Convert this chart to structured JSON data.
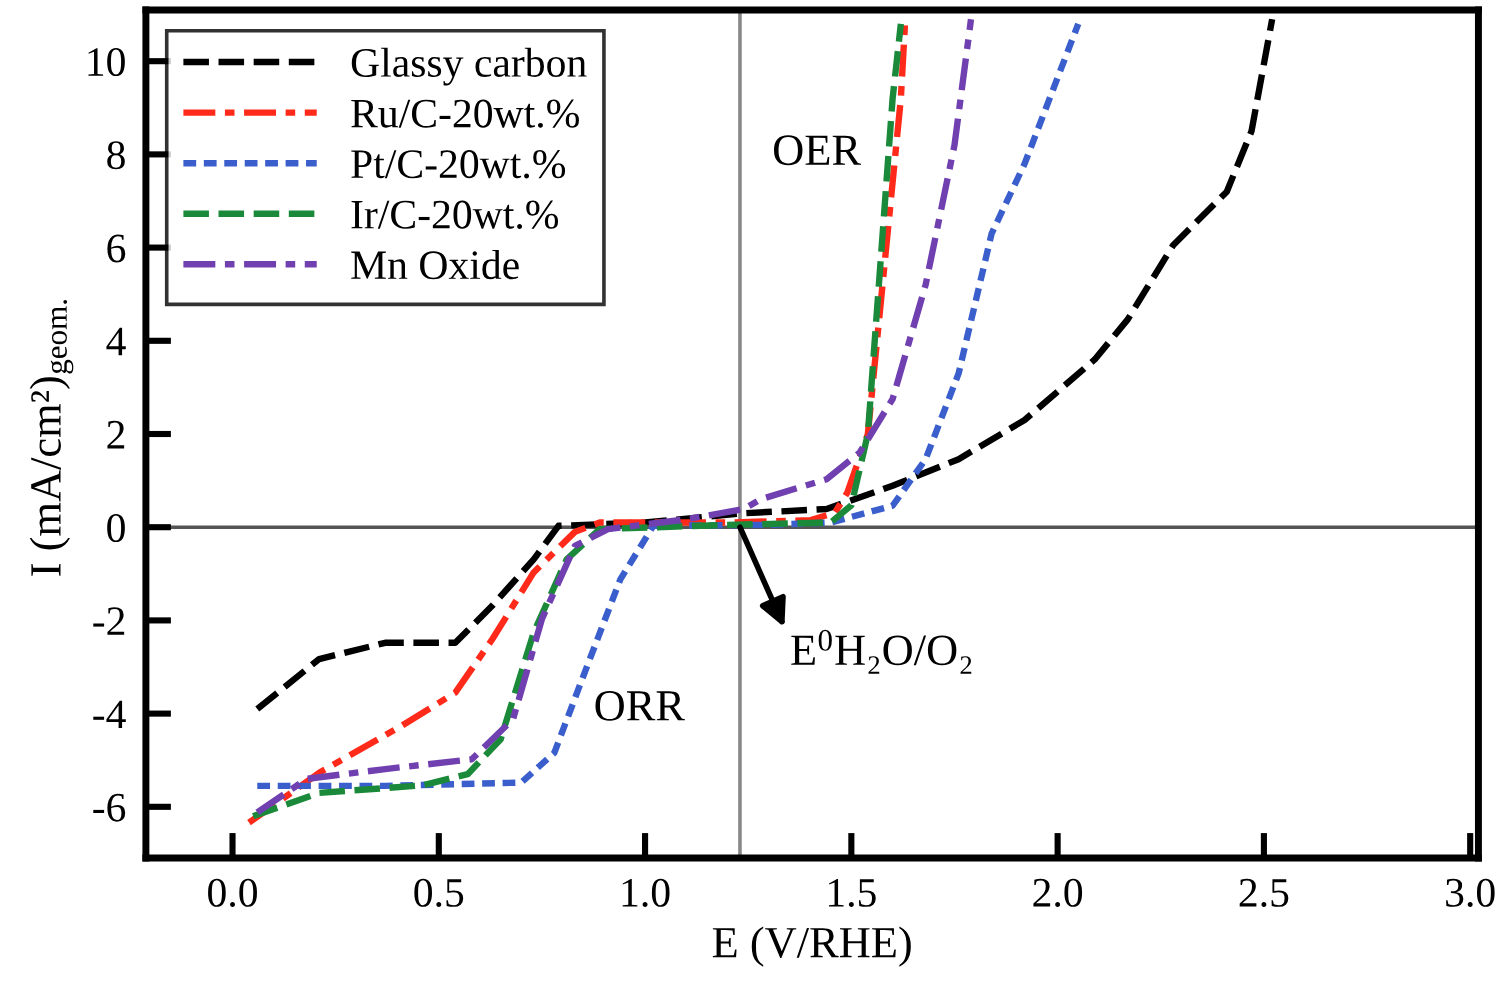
{
  "chart_data": {
    "type": "line",
    "xlabel": "E (V/RHE)",
    "ylabel": "I (mA/cm²)$_{geom.}$",
    "xlim": [
      -0.21,
      3.02
    ],
    "ylim": [
      -7.1,
      11.1
    ],
    "xticks": [
      {
        "value": 0,
        "label": "0.0"
      },
      {
        "value": 0.5,
        "label": "0.5"
      },
      {
        "value": 1,
        "label": "1.0"
      },
      {
        "value": 1.5,
        "label": "1.5"
      },
      {
        "value": 2,
        "label": "2.0"
      },
      {
        "value": 2.5,
        "label": "2.5"
      },
      {
        "value": 3,
        "label": "3.0"
      }
    ],
    "yticks": [
      -6,
      -4,
      -2,
      0,
      2,
      4,
      6,
      8,
      10
    ],
    "grid": false,
    "legend": "top left",
    "marker": "none",
    "ref_lines": [
      {
        "axis": "x",
        "value": 1.23,
        "color": "#888888"
      },
      {
        "axis": "y",
        "value": 0,
        "color": "#555555"
      }
    ],
    "annotations": [
      "OER",
      "ORR",
      {
        "text": "E$^{0}$H₂O/O₂",
        "x": 1.23,
        "y": 0
      }
    ],
    "series": [
      {
        "name": "Glassy carbon",
        "color": "#000000",
        "line_style": "dashed",
        "x": [
          0.06,
          0.21,
          0.37,
          0.54,
          0.63,
          0.73,
          0.79,
          1.0,
          1.24,
          1.44,
          1.6,
          1.76,
          1.92,
          2.09,
          2.17,
          2.28,
          2.41,
          2.47,
          2.52
        ],
        "values": [
          -3.9,
          -2.83,
          -2.48,
          -2.48,
          -1.68,
          -0.69,
          0.03,
          0.1,
          0.3,
          0.39,
          0.89,
          1.46,
          2.3,
          3.6,
          4.46,
          6.05,
          7.2,
          8.5,
          10.9
        ]
      },
      {
        "name": "Ru/C-20wt.%",
        "color": "#ff2a1a",
        "line_style": "dashdot",
        "x": [
          0.04,
          0.21,
          0.41,
          0.54,
          0.63,
          0.73,
          0.83,
          0.89,
          1.2,
          1.4,
          1.46,
          1.49,
          1.54,
          1.58,
          1.62,
          1.63
        ],
        "values": [
          -6.34,
          -5.27,
          -4.26,
          -3.55,
          -2.4,
          -0.97,
          -0.1,
          0.1,
          0.1,
          0.15,
          0.31,
          0.74,
          2.0,
          5.6,
          9.2,
          10.8
        ]
      },
      {
        "name": "Pt/C-20wt.%",
        "color": "#3a5fcd",
        "line_style": "dotted",
        "x": [
          0.06,
          0.37,
          0.7,
          0.78,
          0.86,
          0.94,
          1.02,
          1.3,
          1.45,
          1.6,
          1.68,
          1.76,
          1.84,
          1.92,
          2.05
        ],
        "values": [
          -5.55,
          -5.55,
          -5.48,
          -4.84,
          -2.97,
          -1.12,
          0.03,
          0.05,
          0.1,
          0.46,
          1.46,
          3.3,
          6.3,
          7.8,
          10.8
        ]
      },
      {
        "name": "Ir/C-20wt.%",
        "color": "#1a8a3a",
        "line_style": "dashed",
        "x": [
          0.05,
          0.21,
          0.46,
          0.57,
          0.65,
          0.73,
          0.81,
          0.89,
          1.2,
          1.45,
          1.5,
          1.54,
          1.57,
          1.6,
          1.62
        ],
        "values": [
          -6.2,
          -5.7,
          -5.54,
          -5.3,
          -4.55,
          -2.26,
          -0.69,
          -0.04,
          0.05,
          0.1,
          0.47,
          2.0,
          5.6,
          9.2,
          10.8
        ]
      },
      {
        "name": "Mn Oxide",
        "color": "#7040b0",
        "line_style": "dashdot",
        "x": [
          0.06,
          0.18,
          0.37,
          0.58,
          0.68,
          0.75,
          0.83,
          0.91,
          1.1,
          1.24,
          1.28,
          1.44,
          1.52,
          1.6,
          1.68,
          1.75,
          1.79
        ],
        "values": [
          -6.12,
          -5.4,
          -5.19,
          -4.98,
          -4.12,
          -1.97,
          -0.4,
          -0.04,
          0.17,
          0.39,
          0.6,
          1.03,
          1.6,
          2.75,
          5.2,
          8.2,
          10.9
        ]
      }
    ]
  }
}
